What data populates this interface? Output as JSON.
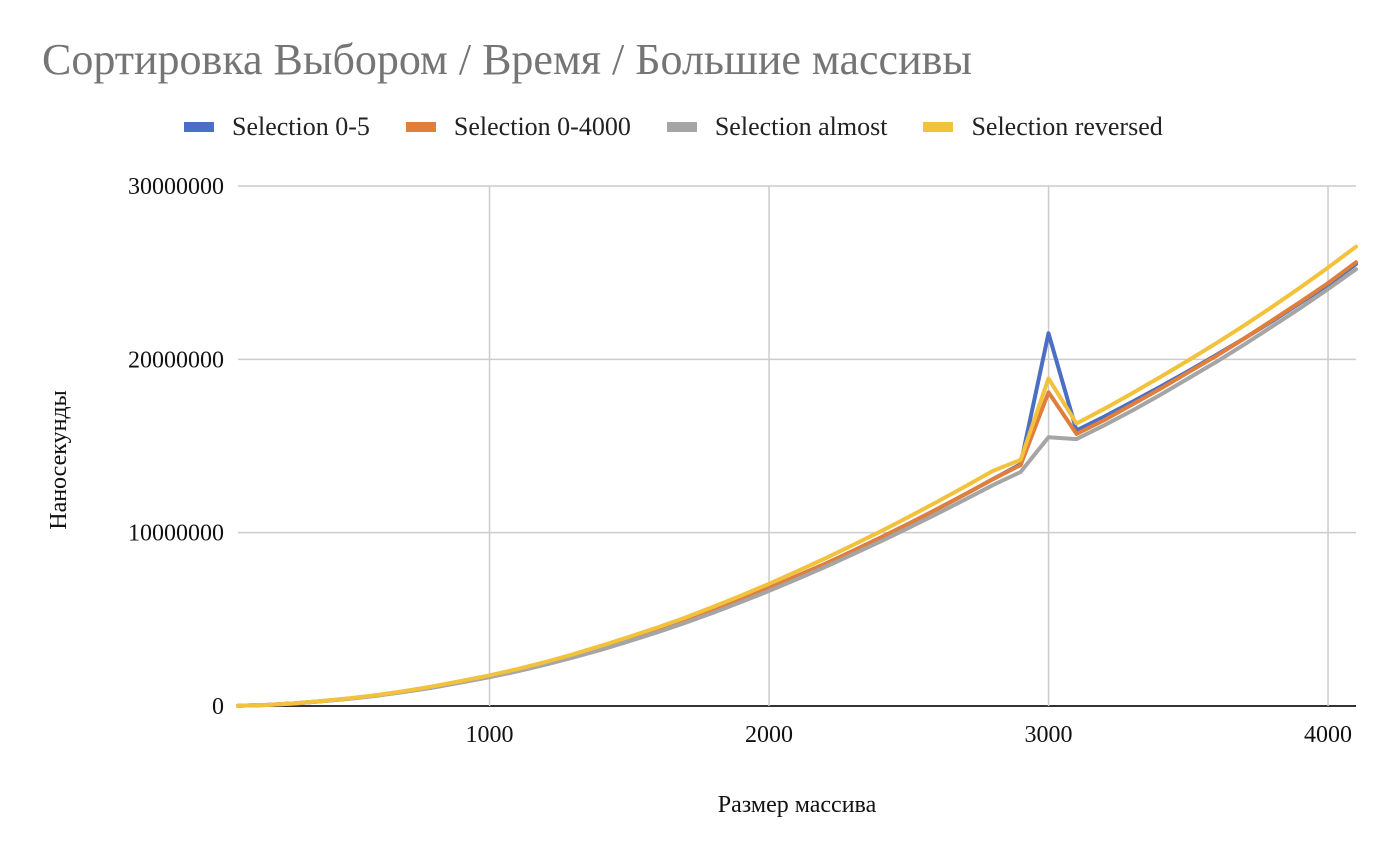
{
  "chart_data": {
    "type": "line",
    "title": "Сортировка Выбором / Время / Большие массивы",
    "xlabel": "Размер массива",
    "ylabel": "Наносекунды",
    "xlim": [
      100,
      4100
    ],
    "ylim": [
      0,
      30000000
    ],
    "x_ticks": [
      "1000",
      "2000",
      "3000",
      "4000"
    ],
    "y_ticks": [
      "0",
      "10000000",
      "20000000",
      "30000000"
    ],
    "grid": true,
    "legend_position": "top",
    "x": [
      100,
      200,
      300,
      400,
      500,
      600,
      700,
      800,
      900,
      1000,
      1100,
      1200,
      1300,
      1400,
      1500,
      1600,
      1700,
      1800,
      1900,
      2000,
      2100,
      2200,
      2300,
      2400,
      2500,
      2600,
      2700,
      2800,
      2900,
      3000,
      3100,
      3200,
      3300,
      3400,
      3500,
      3600,
      3700,
      3800,
      3900,
      4000,
      4100
    ],
    "series": [
      {
        "name": "Selection 0-5",
        "color": "#4a6fc4",
        "values": [
          20000,
          60000,
          150000,
          280000,
          430000,
          620000,
          840000,
          1100000,
          1400000,
          1700000,
          2050000,
          2450000,
          2880000,
          3350000,
          3850000,
          4360000,
          4920000,
          5520000,
          6150000,
          6800000,
          7500000,
          8200000,
          8950000,
          9720000,
          10520000,
          11350000,
          12200000,
          13080000,
          13950000,
          21500000,
          15900000,
          16700000,
          17550000,
          18420000,
          19320000,
          20250000,
          21200000,
          22200000,
          23250000,
          24300000,
          25500000
        ]
      },
      {
        "name": "Selection 0-4000",
        "color": "#e07e3c",
        "values": [
          20000,
          60000,
          150000,
          280000,
          430000,
          620000,
          840000,
          1100000,
          1400000,
          1700000,
          2050000,
          2450000,
          2880000,
          3350000,
          3850000,
          4360000,
          4920000,
          5520000,
          6150000,
          6800000,
          7500000,
          8200000,
          8950000,
          9720000,
          10520000,
          11350000,
          12200000,
          13080000,
          13900000,
          18100000,
          15700000,
          16500000,
          17400000,
          18300000,
          19250000,
          20200000,
          21200000,
          22250000,
          23300000,
          24400000,
          25600000
        ]
      },
      {
        "name": "Selection almost",
        "color": "#a5a5a5",
        "values": [
          20000,
          60000,
          140000,
          270000,
          420000,
          600000,
          820000,
          1070000,
          1360000,
          1660000,
          2000000,
          2380000,
          2800000,
          3250000,
          3740000,
          4250000,
          4800000,
          5380000,
          6000000,
          6640000,
          7320000,
          8020000,
          8750000,
          9500000,
          10280000,
          11080000,
          11900000,
          12740000,
          13500000,
          15500000,
          15400000,
          16200000,
          17050000,
          17950000,
          18900000,
          19850000,
          20850000,
          21900000,
          22950000,
          24050000,
          25200000
        ]
      },
      {
        "name": "Selection reversed",
        "color": "#f3c23c",
        "values": [
          20000,
          60000,
          150000,
          290000,
          450000,
          640000,
          870000,
          1140000,
          1450000,
          1770000,
          2130000,
          2540000,
          2990000,
          3480000,
          3990000,
          4530000,
          5100000,
          5720000,
          6370000,
          7050000,
          7770000,
          8510000,
          9280000,
          10080000,
          10910000,
          11770000,
          12650000,
          13560000,
          14200000,
          18900000,
          16300000,
          17150000,
          18050000,
          18980000,
          19940000,
          20930000,
          21960000,
          23030000,
          24140000,
          25290000,
          26500000
        ]
      }
    ]
  }
}
